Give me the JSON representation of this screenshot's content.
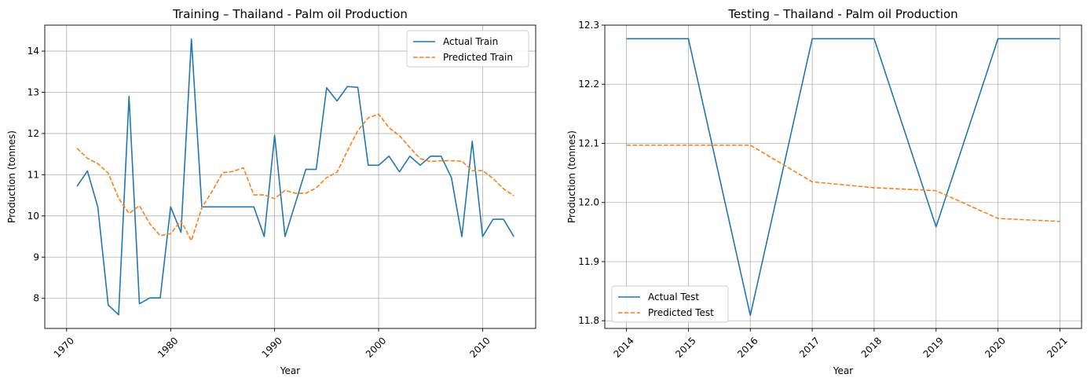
{
  "chart_data": [
    {
      "type": "line",
      "title": "Training – Thailand - Palm oil Production",
      "xlabel": "Year",
      "ylabel": "Production (tonnes)",
      "xlim": [
        1967.9,
        2015.1
      ],
      "ylim": [
        7.27,
        14.63
      ],
      "xticks": [
        1970,
        1980,
        1990,
        2000,
        2010
      ],
      "yticks": [
        8,
        9,
        10,
        11,
        12,
        13,
        14
      ],
      "xtick_rotation": 45,
      "grid": true,
      "legend_position": "top-right",
      "x": [
        1971,
        1972,
        1973,
        1974,
        1975,
        1976,
        1977,
        1978,
        1979,
        1980,
        1981,
        1982,
        1983,
        1984,
        1985,
        1986,
        1987,
        1988,
        1989,
        1990,
        1991,
        1992,
        1993,
        1994,
        1995,
        1996,
        1997,
        1998,
        1999,
        2000,
        2001,
        2002,
        2003,
        2004,
        2005,
        2006,
        2007,
        2008,
        2009,
        2010,
        2011,
        2012,
        2013
      ],
      "series": [
        {
          "name": "Actual Train",
          "color": "#1f77b4",
          "dash": "solid",
          "values": [
            10.72,
            11.09,
            10.22,
            7.84,
            7.6,
            12.9,
            7.87,
            8.01,
            8.01,
            10.22,
            9.6,
            14.29,
            10.22,
            10.22,
            10.22,
            10.22,
            10.22,
            10.22,
            9.5,
            11.96,
            9.5,
            10.31,
            11.13,
            11.13,
            13.11,
            12.79,
            13.14,
            13.12,
            11.23,
            11.23,
            11.45,
            11.07,
            11.45,
            11.23,
            11.45,
            11.45,
            10.93,
            9.5,
            11.81,
            9.5,
            9.92,
            9.92,
            9.5
          ]
        },
        {
          "name": "Predicted Train",
          "color": "#ff7f0e",
          "dash": "dashed",
          "values": [
            11.64,
            11.4,
            11.27,
            11.04,
            10.43,
            10.06,
            10.25,
            9.81,
            9.52,
            9.57,
            9.88,
            9.4,
            10.2,
            10.6,
            11.05,
            11.08,
            11.17,
            10.51,
            10.51,
            10.42,
            10.62,
            10.55,
            10.55,
            10.68,
            10.93,
            11.06,
            11.58,
            12.07,
            12.38,
            12.47,
            12.14,
            11.95,
            11.66,
            11.39,
            11.32,
            11.34,
            11.34,
            11.33,
            11.1,
            11.1,
            10.91,
            10.66,
            10.49
          ]
        }
      ]
    },
    {
      "type": "line",
      "title": "Testing – Thailand - Palm oil Production",
      "xlabel": "Year",
      "ylabel": "Production (tonnes)",
      "xlim": [
        2013.65,
        2021.35
      ],
      "ylim": [
        11.787,
        12.3
      ],
      "xticks": [
        2014,
        2015,
        2016,
        2017,
        2018,
        2019,
        2020,
        2021
      ],
      "yticks": [
        11.8,
        11.9,
        12.0,
        12.1,
        12.2,
        12.3
      ],
      "xtick_rotation": 45,
      "grid": true,
      "legend_position": "bottom-left",
      "x": [
        2014,
        2015,
        2016,
        2017,
        2018,
        2019,
        2020,
        2021
      ],
      "series": [
        {
          "name": "Actual Test",
          "color": "#1f77b4",
          "dash": "solid",
          "values": [
            12.277,
            12.277,
            11.809,
            12.277,
            12.277,
            11.959,
            12.277,
            12.277
          ]
        },
        {
          "name": "Predicted Test",
          "color": "#ff7f0e",
          "dash": "dashed",
          "values": [
            12.097,
            12.097,
            12.097,
            12.035,
            12.025,
            12.02,
            11.973,
            11.968
          ]
        }
      ]
    }
  ]
}
